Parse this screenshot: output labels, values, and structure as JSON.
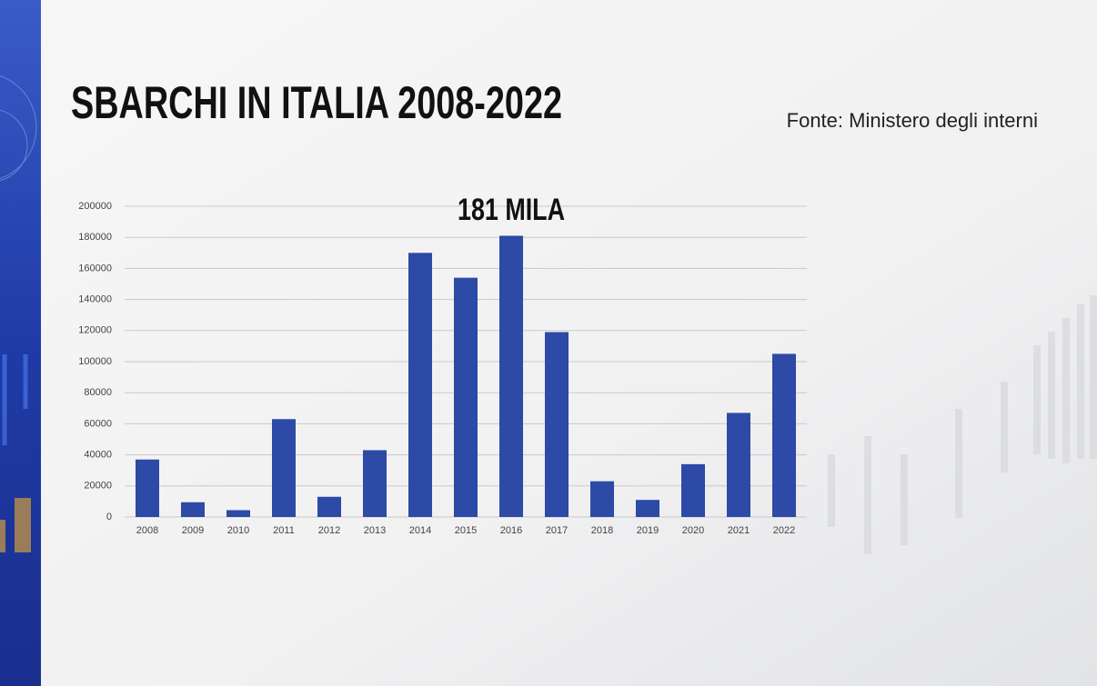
{
  "chart_data": {
    "type": "bar",
    "title": "SBARCHI IN ITALIA 2008-2022",
    "source": "Fonte: Ministero degli interni",
    "annotation": "181 MILA",
    "categories": [
      "2008",
      "2009",
      "2010",
      "2011",
      "2012",
      "2013",
      "2014",
      "2015",
      "2016",
      "2017",
      "2018",
      "2019",
      "2020",
      "2021",
      "2022"
    ],
    "values": [
      37000,
      9500,
      4400,
      63000,
      13000,
      43000,
      170000,
      154000,
      181000,
      119000,
      23000,
      11000,
      34000,
      67000,
      105000
    ],
    "color": "#2c4aa6",
    "ylim": [
      0,
      200000
    ],
    "yticks": [
      0,
      20000,
      40000,
      60000,
      80000,
      100000,
      120000,
      140000,
      160000,
      180000,
      200000
    ],
    "grid": true
  }
}
